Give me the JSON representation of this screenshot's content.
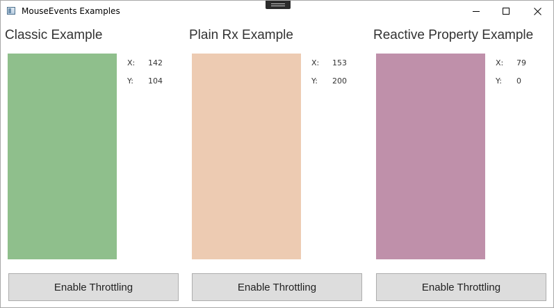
{
  "window": {
    "title": "MouseEvents Examples"
  },
  "sections": [
    {
      "title": "Classic Example",
      "pad_color": "#8fbf8c",
      "x_label": "X:",
      "y_label": "Y:",
      "x_value": "142",
      "y_value": "104",
      "button_label": "Enable Throttling"
    },
    {
      "title": "Plain Rx Example",
      "pad_color": "#edcbb2",
      "x_label": "X:",
      "y_label": "Y:",
      "x_value": "153",
      "y_value": "200",
      "button_label": "Enable Throttling"
    },
    {
      "title": "Reactive Property Example",
      "pad_color": "#bf90aa",
      "x_label": "X:",
      "y_label": "Y:",
      "x_value": "79",
      "y_value": "0",
      "button_label": "Enable Throttling"
    }
  ]
}
